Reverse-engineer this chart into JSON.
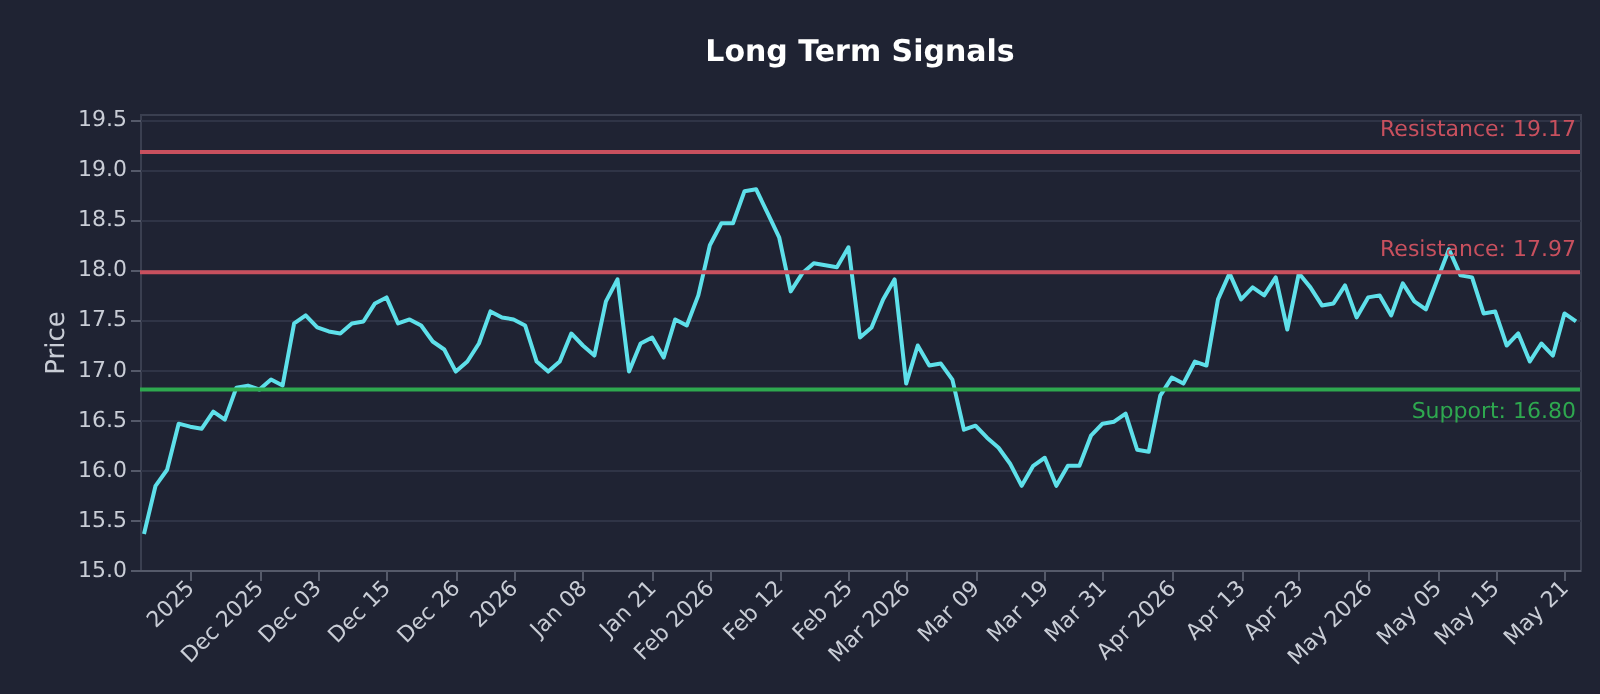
{
  "chart_data": {
    "type": "line",
    "title": "Long Term Signals",
    "ylabel": "Price",
    "categories": [
      null,
      null,
      null,
      null,
      "2025",
      null,
      null,
      null,
      null,
      null,
      "Dec 2025",
      null,
      null,
      null,
      null,
      "Dec 03",
      null,
      null,
      null,
      null,
      null,
      "Dec 15",
      null,
      null,
      null,
      null,
      null,
      "Dec 26",
      null,
      null,
      null,
      null,
      "2026",
      null,
      null,
      null,
      null,
      null,
      "Jan 08",
      null,
      null,
      null,
      null,
      null,
      "Jan 21",
      null,
      null,
      null,
      null,
      "Feb 2026",
      null,
      null,
      null,
      null,
      null,
      "Feb 12",
      null,
      null,
      null,
      null,
      null,
      "Feb 25",
      null,
      null,
      null,
      null,
      "Mar 2026",
      null,
      null,
      null,
      null,
      null,
      "Mar 09",
      null,
      null,
      null,
      null,
      null,
      "Mar 19",
      null,
      null,
      null,
      null,
      "Mar 31",
      null,
      null,
      null,
      null,
      null,
      "Apr 2026",
      null,
      null,
      null,
      null,
      null,
      "Apr 13",
      null,
      null,
      null,
      null,
      "Apr 23",
      null,
      null,
      null,
      null,
      null,
      "May 2026",
      null,
      null,
      null,
      null,
      null,
      "May 05",
      null,
      null,
      null,
      null,
      "May 15",
      null,
      null,
      null,
      null,
      null,
      "May 21",
      null
    ],
    "series": [
      {
        "color": "#5ee0ea",
        "values": [
          15.36,
          15.84,
          16.0,
          16.46,
          16.43,
          16.41,
          16.58,
          16.5,
          16.82,
          16.84,
          16.8,
          16.9,
          16.84,
          17.46,
          17.54,
          17.42,
          17.38,
          17.36,
          17.46,
          17.48,
          17.66,
          17.72,
          17.46,
          17.5,
          17.44,
          17.28,
          17.2,
          16.98,
          17.08,
          17.26,
          17.58,
          17.52,
          17.5,
          17.44,
          17.08,
          16.98,
          17.08,
          17.36,
          17.24,
          17.14,
          17.68,
          17.9,
          16.98,
          17.26,
          17.32,
          17.12,
          17.5,
          17.44,
          17.74,
          18.24,
          18.46,
          18.46,
          18.78,
          18.8,
          18.56,
          18.32,
          17.78,
          17.96,
          18.06,
          18.04,
          18.02,
          18.22,
          17.32,
          17.42,
          17.7,
          17.9,
          16.86,
          17.24,
          17.04,
          17.06,
          16.9,
          16.4,
          16.44,
          16.32,
          16.22,
          16.06,
          15.84,
          16.04,
          16.12,
          15.84,
          16.04,
          16.04,
          16.34,
          16.46,
          16.48,
          16.56,
          16.2,
          16.18,
          16.74,
          16.92,
          16.86,
          17.08,
          17.04,
          17.7,
          17.96,
          17.7,
          17.82,
          17.74,
          17.92,
          17.4,
          17.96,
          17.82,
          17.64,
          17.66,
          17.84,
          17.52,
          17.72,
          17.74,
          17.54,
          17.86,
          17.68,
          17.6,
          17.9,
          18.2,
          17.94,
          17.92,
          17.56,
          17.58,
          17.24,
          17.36,
          17.08,
          17.26,
          17.14,
          17.56,
          17.48
        ]
      }
    ],
    "ylim": [
      15.0,
      19.55
    ],
    "yticks": [
      {
        "value": 15.0,
        "label": "15.0"
      },
      {
        "value": 15.5,
        "label": "15.5"
      },
      {
        "value": 16.0,
        "label": "16.0"
      },
      {
        "value": 16.5,
        "label": "16.5"
      },
      {
        "value": 17.0,
        "label": "17.0"
      },
      {
        "value": 17.5,
        "label": "17.5"
      },
      {
        "value": 18.0,
        "label": "18.0"
      },
      {
        "value": 18.5,
        "label": "18.5"
      },
      {
        "value": 19.0,
        "label": "19.0"
      },
      {
        "value": 19.5,
        "label": "19.5"
      }
    ],
    "ref_lines": [
      {
        "axis": "y",
        "value": 19.17,
        "label": "Resistance: 19.17",
        "color": "#c8505e"
      },
      {
        "axis": "y",
        "value": 17.97,
        "label": "Resistance: 17.97",
        "color": "#c8505e"
      },
      {
        "axis": "y",
        "value": 16.8,
        "label": "Support: 16.80",
        "color": "#2ea84f"
      }
    ],
    "grid": "y",
    "marker": "none",
    "line_style": "solid"
  }
}
